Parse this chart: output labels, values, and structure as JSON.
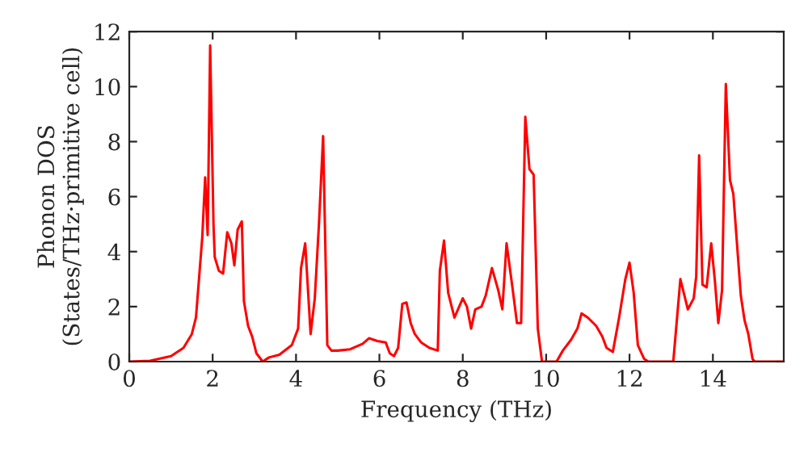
{
  "chart_data": {
    "type": "line",
    "xlabel": "Frequency (THz)",
    "ylabel": "Phonon DOS\n(States/THz·primitive cell)",
    "xlim": [
      0,
      15.7
    ],
    "ylim": [
      0,
      12
    ],
    "xticks": [
      0,
      2,
      4,
      6,
      8,
      10,
      12,
      14
    ],
    "yticks": [
      0,
      2,
      4,
      6,
      8,
      10,
      12
    ],
    "series": [
      {
        "color": "#ff0000",
        "x": [
          0,
          0.5,
          1.0,
          1.3,
          1.5,
          1.6,
          1.75,
          1.82,
          1.88,
          1.94,
          2.02,
          2.05,
          2.15,
          2.25,
          2.35,
          2.45,
          2.52,
          2.6,
          2.7,
          2.75,
          2.85,
          2.95,
          3.05,
          3.2,
          3.35,
          3.6,
          3.9,
          4.05,
          4.12,
          4.22,
          4.35,
          4.45,
          4.55,
          4.65,
          4.75,
          4.85,
          5.0,
          5.3,
          5.6,
          5.75,
          5.95,
          6.15,
          6.25,
          6.35,
          6.45,
          6.55,
          6.65,
          6.75,
          6.85,
          7.0,
          7.2,
          7.4,
          7.45,
          7.55,
          7.65,
          7.8,
          8.0,
          8.1,
          8.2,
          8.3,
          8.45,
          8.55,
          8.7,
          8.85,
          8.95,
          9.05,
          9.2,
          9.3,
          9.4,
          9.5,
          9.6,
          9.7,
          9.8,
          9.9,
          10.25,
          10.4,
          10.6,
          10.75,
          10.85,
          11.0,
          11.2,
          11.35,
          11.45,
          11.6,
          11.75,
          11.9,
          12.0,
          12.1,
          12.2,
          12.35,
          12.45,
          13.05,
          13.22,
          13.4,
          13.54,
          13.6,
          13.67,
          13.75,
          13.85,
          13.96,
          14.05,
          14.13,
          14.22,
          14.31,
          14.41,
          14.49,
          14.67,
          14.76,
          14.85,
          14.95,
          15.0,
          15.7
        ],
        "values": [
          0,
          0.03,
          0.2,
          0.5,
          1.0,
          1.6,
          4.5,
          6.7,
          4.6,
          11.5,
          5.0,
          3.8,
          3.3,
          3.2,
          4.7,
          4.3,
          3.5,
          4.8,
          5.1,
          2.2,
          1.3,
          0.9,
          0.3,
          0.0,
          0.15,
          0.25,
          0.6,
          1.2,
          3.4,
          4.3,
          1.0,
          2.3,
          5.0,
          8.2,
          0.6,
          0.4,
          0.4,
          0.45,
          0.65,
          0.85,
          0.75,
          0.7,
          0.3,
          0.2,
          0.5,
          2.1,
          2.15,
          1.4,
          1.0,
          0.7,
          0.5,
          0.4,
          3.3,
          4.4,
          2.5,
          1.6,
          2.3,
          2.0,
          1.2,
          1.9,
          2.0,
          2.4,
          3.4,
          2.6,
          1.9,
          4.3,
          2.6,
          1.4,
          1.4,
          8.9,
          7.0,
          6.8,
          1.2,
          0.0,
          0.0,
          0.4,
          0.8,
          1.2,
          1.75,
          1.6,
          1.3,
          0.9,
          0.5,
          0.35,
          1.6,
          3.0,
          3.6,
          2.5,
          0.6,
          0.1,
          0.0,
          0.0,
          3.0,
          1.9,
          2.3,
          3.1,
          7.5,
          2.8,
          2.7,
          4.3,
          2.9,
          1.4,
          2.6,
          10.1,
          6.6,
          6.1,
          2.4,
          1.5,
          1.0,
          0.1,
          0.0,
          0.0
        ]
      }
    ]
  }
}
